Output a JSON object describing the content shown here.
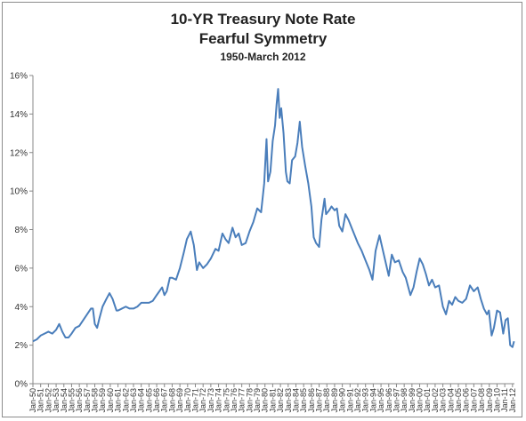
{
  "chart_data": {
    "type": "line",
    "title": "10-YR Treasury Note Rate",
    "subtitle": "Fearful Symmetry",
    "subtitle2": "1950-March 2012",
    "xlabel": "",
    "ylabel": "",
    "ylim": [
      0,
      16
    ],
    "y_ticks": [
      "0%",
      "2%",
      "4%",
      "6%",
      "8%",
      "10%",
      "12%",
      "14%",
      "16%"
    ],
    "x_ticks": [
      "Jan-50",
      "Jan-51",
      "Jan-52",
      "Jan-53",
      "Jan-54",
      "Jan-55",
      "Jan-56",
      "Jan-57",
      "Jan-58",
      "Jan-59",
      "Jan-60",
      "Jan-61",
      "Jan-62",
      "Jan-63",
      "Jan-64",
      "Jan-65",
      "Jan-66",
      "Jan-67",
      "Jan-68",
      "Jan-69",
      "Jan-70",
      "Jan-71",
      "Jan-72",
      "Jan-73",
      "Jan-74",
      "Jan-75",
      "Jan-76",
      "Jan-77",
      "Jan-78",
      "Jan-79",
      "Jan-80",
      "Jan-81",
      "Jan-82",
      "Jan-83",
      "Jan-84",
      "Jan-85",
      "Jan-86",
      "Jan-87",
      "Jan-88",
      "Jan-89",
      "Jan-90",
      "Jan-91",
      "Jan-92",
      "Jan-93",
      "Jan-94",
      "Jan-95",
      "Jan-96",
      "Jan-97",
      "Jan-98",
      "Jan-99",
      "Jan-00",
      "Jan-01",
      "Jan-02",
      "Jan-03",
      "Jan-04",
      "Jan-05",
      "Jan-06",
      "Jan-07",
      "Jan-08",
      "Jan-09",
      "Jan-10",
      "Jan-11",
      "Jan-12"
    ],
    "grid": false,
    "legend": "none",
    "line_color": "#4a7ebb",
    "series": [
      {
        "x": [
          1950.0,
          1950.5,
          1951.0,
          1951.5,
          1952.0,
          1952.5,
          1953.0,
          1953.4,
          1953.8,
          1954.2,
          1954.6,
          1955.0,
          1955.5,
          1956.0,
          1956.5,
          1957.0,
          1957.5,
          1957.75,
          1958.0,
          1958.3,
          1958.6,
          1959.0,
          1959.5,
          1959.9,
          1960.3,
          1960.8,
          1961.0,
          1961.5,
          1962.0,
          1962.5,
          1963.0,
          1963.5,
          1964.0,
          1964.5,
          1965.0,
          1965.5,
          1966.0,
          1966.7,
          1967.0,
          1967.3,
          1967.7,
          1968.0,
          1968.5,
          1969.0,
          1969.5,
          1969.9,
          1970.4,
          1970.8,
          1971.2,
          1971.5,
          1972.0,
          1972.5,
          1973.0,
          1973.6,
          1974.0,
          1974.5,
          1974.9,
          1975.3,
          1975.8,
          1976.2,
          1976.6,
          1977.0,
          1977.5,
          1978.0,
          1978.5,
          1979.0,
          1979.5,
          1979.9,
          1980.2,
          1980.4,
          1980.7,
          1981.0,
          1981.3,
          1981.5,
          1981.7,
          1981.9,
          1982.1,
          1982.4,
          1982.7,
          1982.9,
          1983.2,
          1983.5,
          1983.9,
          1984.2,
          1984.5,
          1984.8,
          1985.2,
          1985.6,
          1986.0,
          1986.3,
          1986.6,
          1987.0,
          1987.3,
          1987.7,
          1987.9,
          1988.3,
          1988.6,
          1989.0,
          1989.3,
          1989.6,
          1990.0,
          1990.4,
          1990.8,
          1991.2,
          1991.6,
          1992.0,
          1992.5,
          1993.0,
          1993.5,
          1993.9,
          1994.3,
          1994.8,
          1995.2,
          1995.6,
          1996.0,
          1996.4,
          1996.8,
          1997.3,
          1997.8,
          1998.2,
          1998.8,
          1999.2,
          1999.6,
          2000.0,
          2000.4,
          2000.8,
          2001.2,
          2001.6,
          2002.0,
          2002.5,
          2003.0,
          2003.4,
          2003.8,
          2004.2,
          2004.6,
          2005.0,
          2005.5,
          2006.0,
          2006.5,
          2007.0,
          2007.5,
          2007.9,
          2008.3,
          2008.7,
          2008.95,
          2009.3,
          2009.6,
          2010.0,
          2010.4,
          2010.8,
          2011.1,
          2011.4,
          2011.7,
          2012.0,
          2012.2
        ],
        "values": [
          2.2,
          2.3,
          2.5,
          2.6,
          2.7,
          2.6,
          2.8,
          3.1,
          2.7,
          2.4,
          2.4,
          2.6,
          2.9,
          3.0,
          3.3,
          3.6,
          3.9,
          3.9,
          3.1,
          2.9,
          3.4,
          4.0,
          4.4,
          4.7,
          4.4,
          3.8,
          3.8,
          3.9,
          4.0,
          3.9,
          3.9,
          4.0,
          4.2,
          4.2,
          4.2,
          4.3,
          4.6,
          5.0,
          4.6,
          4.8,
          5.5,
          5.5,
          5.4,
          6.0,
          6.8,
          7.5,
          7.9,
          7.2,
          5.9,
          6.3,
          6.0,
          6.2,
          6.5,
          7.0,
          6.9,
          7.8,
          7.5,
          7.3,
          8.1,
          7.6,
          7.8,
          7.2,
          7.3,
          7.9,
          8.4,
          9.1,
          8.9,
          10.4,
          12.7,
          10.5,
          11.0,
          12.6,
          13.4,
          14.5,
          15.3,
          13.8,
          14.3,
          13.0,
          11.0,
          10.5,
          10.4,
          11.6,
          11.8,
          12.5,
          13.6,
          12.3,
          11.3,
          10.4,
          9.2,
          7.6,
          7.3,
          7.1,
          8.5,
          9.6,
          8.8,
          9.0,
          9.2,
          9.0,
          9.1,
          8.2,
          7.9,
          8.8,
          8.5,
          8.1,
          7.7,
          7.3,
          6.9,
          6.4,
          5.9,
          5.4,
          6.9,
          7.7,
          7.0,
          6.3,
          5.6,
          6.7,
          6.3,
          6.4,
          5.8,
          5.5,
          4.6,
          5.0,
          5.8,
          6.5,
          6.2,
          5.7,
          5.1,
          5.4,
          5.0,
          5.1,
          4.0,
          3.6,
          4.3,
          4.1,
          4.5,
          4.3,
          4.2,
          4.4,
          5.1,
          4.8,
          5.0,
          4.4,
          3.9,
          3.6,
          3.8,
          2.5,
          2.9,
          3.8,
          3.7,
          2.6,
          3.3,
          3.4,
          2.0,
          1.9,
          2.2
        ]
      }
    ]
  }
}
